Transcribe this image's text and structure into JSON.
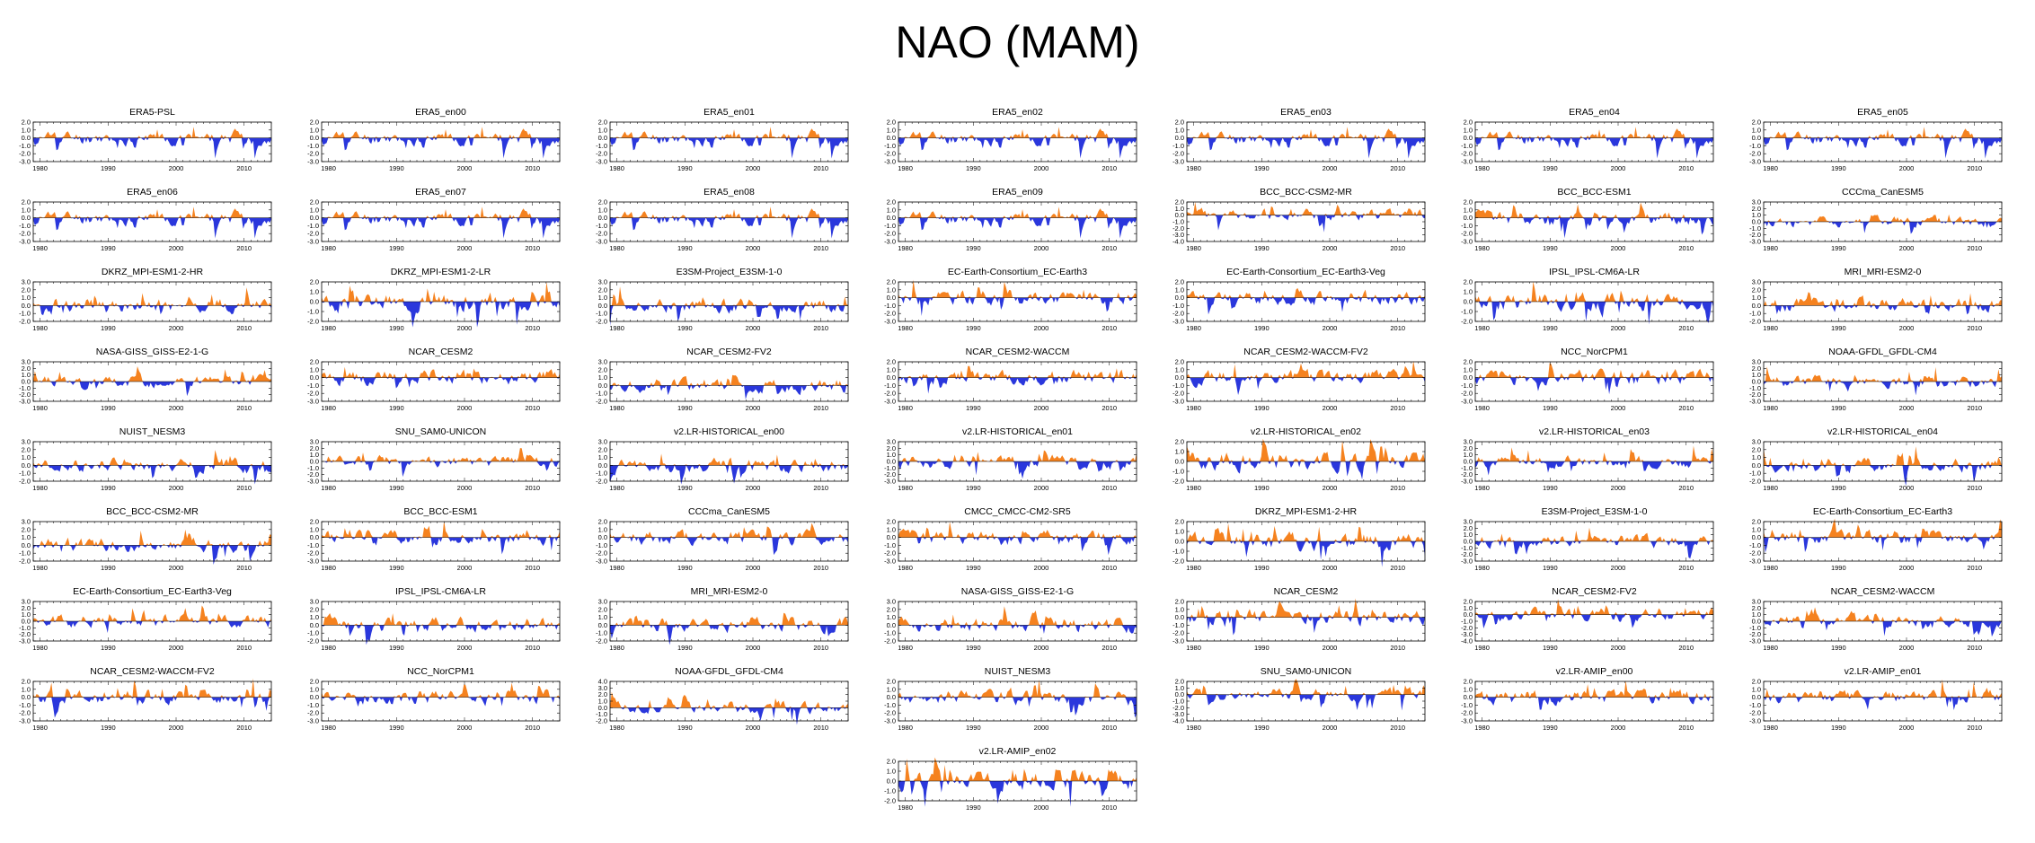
{
  "title": "NAO (MAM)",
  "colors": {
    "positive": "#f5821f",
    "negative": "#2a37dc",
    "axis": "#000000"
  },
  "chart_data": {
    "type": "area",
    "xlabel": "",
    "ylabel": "",
    "x_range": [
      1979,
      2014
    ],
    "x_ticks": [
      1980,
      1990,
      2000,
      2010
    ],
    "y_ticks_default": [
      2.0,
      1.0,
      0.0,
      -1.0,
      -2.0,
      -3.0
    ],
    "panels": [
      {
        "name": "ERA5-PSL",
        "seed": 11,
        "yticks": [
          2.0,
          1.0,
          0.0,
          -1.0,
          -2.0,
          -3.0
        ]
      },
      {
        "name": "ERA5_en00",
        "seed": 11,
        "yticks": [
          2.0,
          1.0,
          0.0,
          -1.0,
          -2.0,
          -3.0
        ]
      },
      {
        "name": "ERA5_en01",
        "seed": 11,
        "yticks": [
          2.0,
          1.0,
          0.0,
          -1.0,
          -2.0,
          -3.0
        ]
      },
      {
        "name": "ERA5_en02",
        "seed": 11,
        "yticks": [
          2.0,
          1.0,
          0.0,
          -1.0,
          -2.0,
          -3.0
        ]
      },
      {
        "name": "ERA5_en03",
        "seed": 11,
        "yticks": [
          2.0,
          1.0,
          0.0,
          -1.0,
          -2.0,
          -3.0
        ]
      },
      {
        "name": "ERA5_en04",
        "seed": 11,
        "yticks": [
          2.0,
          1.0,
          0.0,
          -1.0,
          -2.0,
          -3.0
        ]
      },
      {
        "name": "ERA5_en05",
        "seed": 11,
        "yticks": [
          2.0,
          1.0,
          0.0,
          -1.0,
          -2.0,
          -3.0
        ]
      },
      {
        "name": "ERA5_en06",
        "seed": 11,
        "yticks": [
          2.0,
          1.0,
          0.0,
          -1.0,
          -2.0,
          -3.0
        ]
      },
      {
        "name": "ERA5_en07",
        "seed": 11,
        "yticks": [
          2.0,
          1.0,
          0.0,
          -1.0,
          -2.0,
          -3.0
        ]
      },
      {
        "name": "ERA5_en08",
        "seed": 11,
        "yticks": [
          2.0,
          1.0,
          0.0,
          -1.0,
          -2.0,
          -3.0
        ]
      },
      {
        "name": "ERA5_en09",
        "seed": 11,
        "yticks": [
          2.0,
          1.0,
          0.0,
          -1.0,
          -2.0,
          -3.0
        ]
      },
      {
        "name": "BCC_BCC-CSM2-MR",
        "seed": 23,
        "yticks": [
          2.0,
          1.0,
          0.0,
          -1.0,
          -2.0,
          -3.0,
          -4.0
        ]
      },
      {
        "name": "BCC_BCC-ESM1",
        "seed": 37,
        "yticks": [
          2.0,
          1.0,
          0.0,
          -1.0,
          -2.0,
          -3.0
        ]
      },
      {
        "name": "CCCma_CanESM5",
        "seed": 41,
        "yticks": [
          3.0,
          2.0,
          1.0,
          0.0,
          -1.0,
          -2.0,
          -3.0
        ]
      },
      {
        "name": "DKRZ_MPI-ESM1-2-HR",
        "seed": 53,
        "yticks": [
          3.0,
          2.0,
          1.0,
          0.0,
          -1.0,
          -2.0
        ]
      },
      {
        "name": "DKRZ_MPI-ESM1-2-LR",
        "seed": 67,
        "yticks": [
          2.0,
          1.0,
          0.0,
          -1.0,
          -2.0
        ]
      },
      {
        "name": "E3SM-Project_E3SM-1-0",
        "seed": 71,
        "yticks": [
          3.0,
          2.0,
          1.0,
          0.0,
          -1.0,
          -2.0
        ]
      },
      {
        "name": "EC-Earth-Consortium_EC-Earth3",
        "seed": 83,
        "yticks": [
          2.0,
          1.0,
          0.0,
          -1.0,
          -2.0,
          -3.0
        ]
      },
      {
        "name": "EC-Earth-Consortium_EC-Earth3-Veg",
        "seed": 97,
        "yticks": [
          2.0,
          1.0,
          0.0,
          -1.0,
          -2.0,
          -3.0
        ]
      },
      {
        "name": "IPSL_IPSL-CM6A-LR",
        "seed": 101,
        "yticks": [
          2.0,
          1.0,
          0.0,
          -1.0,
          -2.0
        ]
      },
      {
        "name": "MRI_MRI-ESM2-0",
        "seed": 113,
        "yticks": [
          3.0,
          2.0,
          1.0,
          0.0,
          -1.0,
          -2.0
        ]
      },
      {
        "name": "NASA-GISS_GISS-E2-1-G",
        "seed": 127,
        "yticks": [
          3.0,
          2.0,
          1.0,
          0.0,
          -1.0,
          -2.0,
          -3.0
        ]
      },
      {
        "name": "NCAR_CESM2",
        "seed": 131,
        "yticks": [
          2.0,
          1.0,
          0.0,
          -1.0,
          -2.0,
          -3.0
        ]
      },
      {
        "name": "NCAR_CESM2-FV2",
        "seed": 139,
        "yticks": [
          3.0,
          2.0,
          1.0,
          0.0,
          -1.0,
          -2.0
        ]
      },
      {
        "name": "NCAR_CESM2-WACCM",
        "seed": 149,
        "yticks": [
          2.0,
          1.0,
          0.0,
          -1.0,
          -2.0,
          -3.0
        ]
      },
      {
        "name": "NCAR_CESM2-WACCM-FV2",
        "seed": 151,
        "yticks": [
          2.0,
          1.0,
          0.0,
          -1.0,
          -2.0,
          -3.0
        ]
      },
      {
        "name": "NCC_NorCPM1",
        "seed": 163,
        "yticks": [
          2.0,
          1.0,
          0.0,
          -1.0,
          -2.0,
          -3.0
        ]
      },
      {
        "name": "NOAA-GFDL_GFDL-CM4",
        "seed": 173,
        "yticks": [
          3.0,
          2.0,
          1.0,
          0.0,
          -1.0,
          -2.0,
          -3.0
        ]
      },
      {
        "name": "NUIST_NESM3",
        "seed": 181,
        "yticks": [
          3.0,
          2.0,
          1.0,
          0.0,
          -1.0,
          -2.0
        ]
      },
      {
        "name": "SNU_SAM0-UNICON",
        "seed": 191,
        "yticks": [
          3.0,
          2.0,
          1.0,
          0.0,
          -1.0,
          -2.0,
          -3.0
        ]
      },
      {
        "name": "v2.LR-HISTORICAL_en00",
        "seed": 193,
        "yticks": [
          3.0,
          2.0,
          1.0,
          0.0,
          -1.0,
          -2.0
        ]
      },
      {
        "name": "v2.LR-HISTORICAL_en01",
        "seed": 197,
        "yticks": [
          3.0,
          2.0,
          1.0,
          0.0,
          -1.0,
          -2.0,
          -3.0
        ]
      },
      {
        "name": "v2.LR-HISTORICAL_en02",
        "seed": 199,
        "yticks": [
          2.0,
          1.0,
          0.0,
          -1.0,
          -2.0
        ]
      },
      {
        "name": "v2.LR-HISTORICAL_en03",
        "seed": 211,
        "yticks": [
          3.0,
          2.0,
          1.0,
          0.0,
          -1.0,
          -2.0,
          -3.0
        ]
      },
      {
        "name": "v2.LR-HISTORICAL_en04",
        "seed": 223,
        "yticks": [
          3.0,
          2.0,
          1.0,
          0.0,
          -1.0,
          -2.0
        ]
      },
      {
        "name": "BCC_BCC-CSM2-MR",
        "seed": 227,
        "yticks": [
          3.0,
          2.0,
          1.0,
          0.0,
          -1.0,
          -2.0
        ]
      },
      {
        "name": "BCC_BCC-ESM1",
        "seed": 229,
        "yticks": [
          2.0,
          1.0,
          0.0,
          -1.0,
          -2.0,
          -3.0
        ]
      },
      {
        "name": "CCCma_CanESM5",
        "seed": 233,
        "yticks": [
          2.0,
          1.0,
          0.0,
          -1.0,
          -2.0,
          -3.0
        ]
      },
      {
        "name": "CMCC_CMCC-CM2-SR5",
        "seed": 239,
        "yticks": [
          2.0,
          1.0,
          0.0,
          -1.0,
          -2.0,
          -3.0
        ]
      },
      {
        "name": "DKRZ_MPI-ESM1-2-HR",
        "seed": 241,
        "yticks": [
          2.0,
          1.0,
          0.0,
          -1.0,
          -2.0
        ]
      },
      {
        "name": "E3SM-Project_E3SM-1-0",
        "seed": 251,
        "yticks": [
          3.0,
          2.0,
          1.0,
          0.0,
          -1.0,
          -2.0,
          -3.0
        ]
      },
      {
        "name": "EC-Earth-Consortium_EC-Earth3",
        "seed": 257,
        "yticks": [
          2.0,
          1.0,
          0.0,
          -1.0,
          -2.0,
          -3.0
        ]
      },
      {
        "name": "EC-Earth-Consortium_EC-Earth3-Veg",
        "seed": 263,
        "yticks": [
          3.0,
          2.0,
          1.0,
          0.0,
          -1.0,
          -2.0,
          -3.0
        ]
      },
      {
        "name": "IPSL_IPSL-CM6A-LR",
        "seed": 269,
        "yticks": [
          3.0,
          2.0,
          1.0,
          0.0,
          -1.0,
          -2.0
        ]
      },
      {
        "name": "MRI_MRI-ESM2-0",
        "seed": 271,
        "yticks": [
          3.0,
          2.0,
          1.0,
          0.0,
          -1.0,
          -2.0
        ]
      },
      {
        "name": "NASA-GISS_GISS-E2-1-G",
        "seed": 277,
        "yticks": [
          3.0,
          2.0,
          1.0,
          0.0,
          -1.0,
          -2.0
        ]
      },
      {
        "name": "NCAR_CESM2",
        "seed": 281,
        "yticks": [
          2.0,
          1.0,
          0.0,
          -1.0,
          -2.0,
          -3.0
        ]
      },
      {
        "name": "NCAR_CESM2-FV2",
        "seed": 283,
        "yticks": [
          2.0,
          1.0,
          0.0,
          -1.0,
          -2.0,
          -3.0,
          -4.0
        ]
      },
      {
        "name": "NCAR_CESM2-WACCM",
        "seed": 293,
        "yticks": [
          3.0,
          2.0,
          1.0,
          0.0,
          -1.0,
          -2.0,
          -3.0
        ]
      },
      {
        "name": "NCAR_CESM2-WACCM-FV2",
        "seed": 307,
        "yticks": [
          2.0,
          1.0,
          0.0,
          -1.0,
          -2.0,
          -3.0
        ]
      },
      {
        "name": "NCC_NorCPM1",
        "seed": 311,
        "yticks": [
          2.0,
          1.0,
          0.0,
          -1.0,
          -2.0,
          -3.0
        ]
      },
      {
        "name": "NOAA-GFDL_GFDL-CM4",
        "seed": 313,
        "yticks": [
          4.0,
          3.0,
          2.0,
          1.0,
          0.0,
          -1.0,
          -2.0
        ]
      },
      {
        "name": "NUIST_NESM3",
        "seed": 317,
        "yticks": [
          2.0,
          1.0,
          0.0,
          -1.0,
          -2.0,
          -3.0
        ]
      },
      {
        "name": "SNU_SAM0-UNICON",
        "seed": 331,
        "yticks": [
          2.0,
          1.0,
          0.0,
          -1.0,
          -2.0,
          -3.0,
          -4.0
        ]
      },
      {
        "name": "v2.LR-AMIP_en00",
        "seed": 337,
        "yticks": [
          2.0,
          1.0,
          0.0,
          -1.0,
          -2.0,
          -3.0
        ]
      },
      {
        "name": "v2.LR-AMIP_en01",
        "seed": 347,
        "yticks": [
          2.0,
          1.0,
          0.0,
          -1.0,
          -2.0,
          -3.0
        ]
      },
      {
        "name": "v2.LR-AMIP_en02",
        "seed": 349,
        "yticks": [
          2.0,
          1.0,
          0.0,
          -1.0,
          -2.0
        ]
      }
    ]
  }
}
